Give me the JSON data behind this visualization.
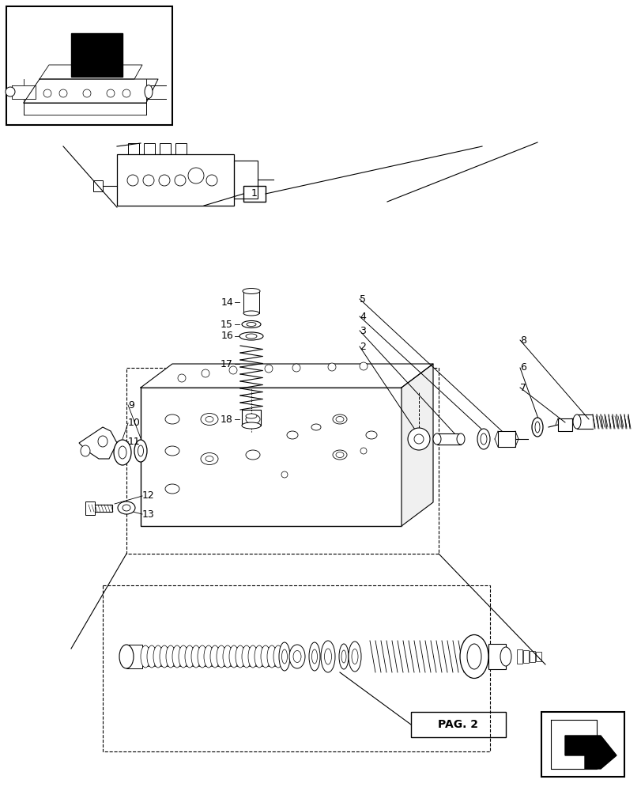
{
  "bg_color": "#ffffff",
  "line_color": "#000000",
  "fig_width": 8.12,
  "fig_height": 10.0,
  "dpi": 100,
  "page2_text": "PAG. 2"
}
